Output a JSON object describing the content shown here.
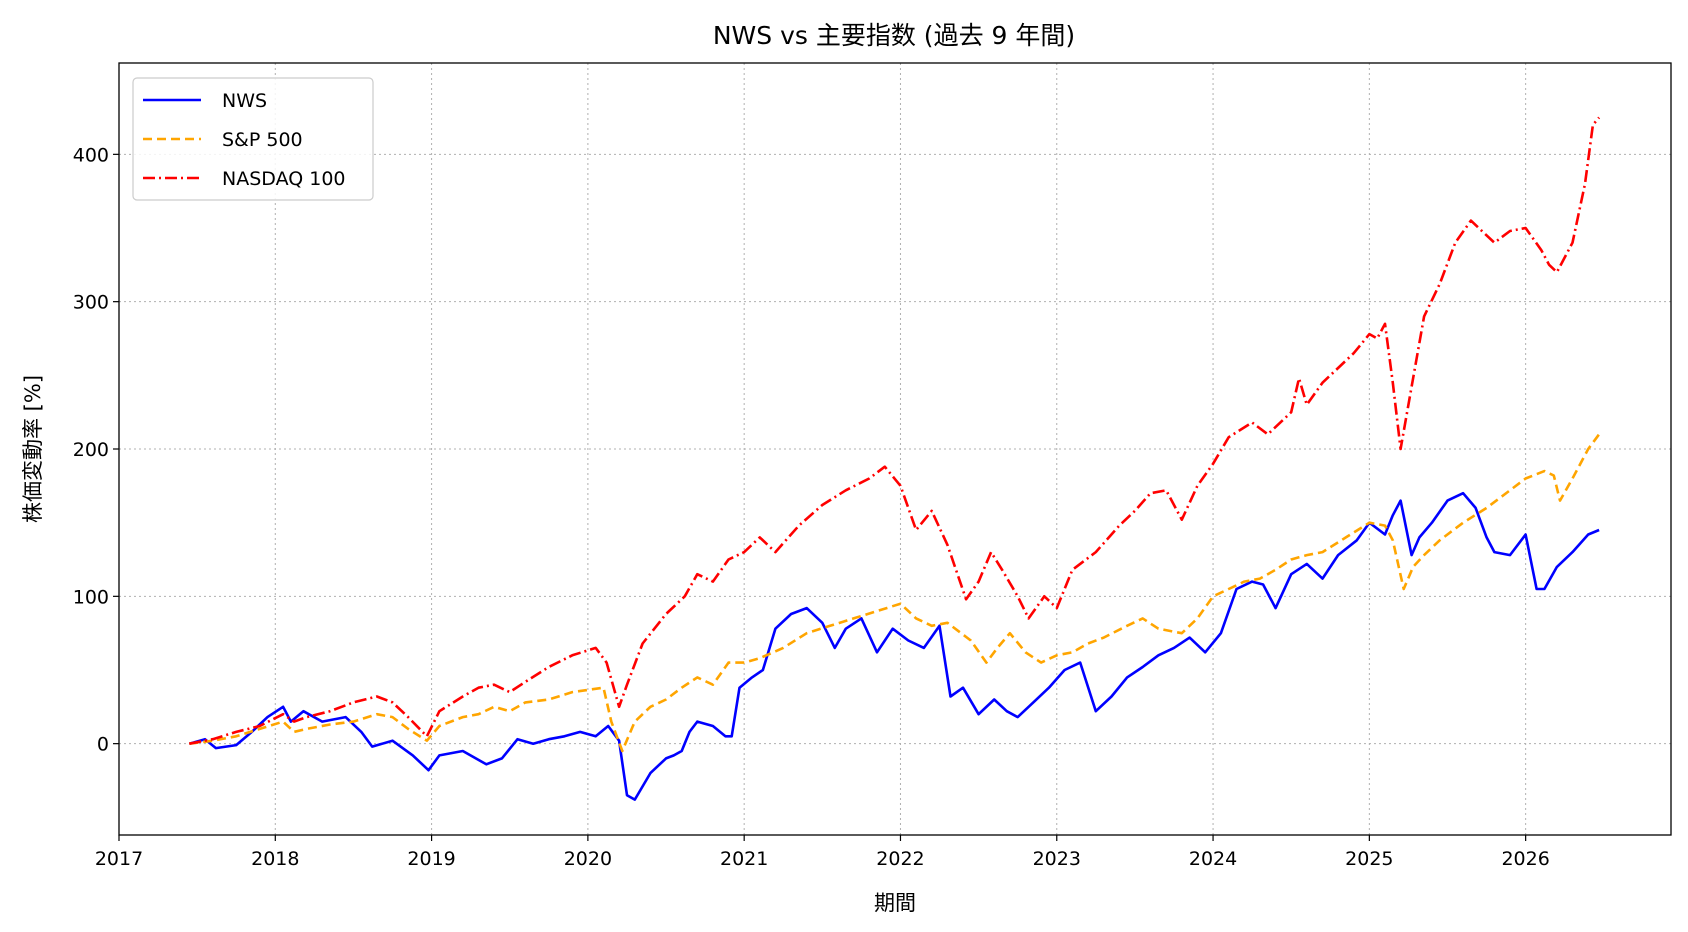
{
  "chart_data": {
    "type": "line",
    "title": "NWS vs 主要指数 (過去 9 年間)",
    "xlabel": "期間",
    "ylabel": "株価変動率 [%]",
    "xlim": [
      2017.0,
      2026.93
    ],
    "ylim": [
      -62,
      462
    ],
    "xticks": [
      2017,
      2018,
      2019,
      2020,
      2021,
      2022,
      2023,
      2024,
      2025,
      2026
    ],
    "yticks": [
      0,
      100,
      200,
      300,
      400
    ],
    "grid": true,
    "legend_position": "top-left",
    "series": [
      {
        "name": "NWS",
        "color": "#0000ff",
        "dash": "solid",
        "x": [
          2017.45,
          2017.55,
          2017.62,
          2017.75,
          2017.85,
          2017.95,
          2018.05,
          2018.1,
          2018.18,
          2018.3,
          2018.45,
          2018.55,
          2018.62,
          2018.75,
          2018.88,
          2018.98,
          2019.05,
          2019.2,
          2019.35,
          2019.45,
          2019.55,
          2019.65,
          2019.75,
          2019.85,
          2019.95,
          2020.05,
          2020.13,
          2020.2,
          2020.25,
          2020.3,
          2020.4,
          2020.5,
          2020.55,
          2020.6,
          2020.65,
          2020.7,
          2020.8,
          2020.88,
          2020.92,
          2020.97,
          2021.05,
          2021.12,
          2021.2,
          2021.3,
          2021.4,
          2021.5,
          2021.58,
          2021.65,
          2021.75,
          2021.85,
          2021.95,
          2022.05,
          2022.15,
          2022.25,
          2022.32,
          2022.4,
          2022.5,
          2022.6,
          2022.68,
          2022.75,
          2022.85,
          2022.95,
          2023.05,
          2023.15,
          2023.25,
          2023.35,
          2023.45,
          2023.55,
          2023.65,
          2023.75,
          2023.85,
          2023.95,
          2024.05,
          2024.15,
          2024.25,
          2024.32,
          2024.4,
          2024.5,
          2024.6,
          2024.7,
          2024.8,
          2024.92,
          2025.0,
          2025.1,
          2025.15,
          2025.2,
          2025.27,
          2025.32,
          2025.4,
          2025.5,
          2025.6,
          2025.68,
          2025.75,
          2025.8,
          2025.9,
          2026.0,
          2026.07,
          2026.12,
          2026.2,
          2026.3,
          2026.4,
          2026.47
        ],
        "y": [
          0,
          3,
          -3,
          -1,
          8,
          18,
          25,
          15,
          22,
          15,
          18,
          8,
          -2,
          2,
          -8,
          -18,
          -8,
          -5,
          -14,
          -10,
          3,
          0,
          3,
          5,
          8,
          5,
          12,
          2,
          -35,
          -38,
          -20,
          -10,
          -8,
          -5,
          8,
          15,
          12,
          5,
          5,
          38,
          45,
          50,
          78,
          88,
          92,
          82,
          65,
          78,
          85,
          62,
          78,
          70,
          65,
          80,
          32,
          38,
          20,
          30,
          22,
          18,
          28,
          38,
          50,
          55,
          22,
          32,
          45,
          52,
          60,
          65,
          72,
          62,
          75,
          105,
          110,
          108,
          92,
          115,
          122,
          112,
          128,
          138,
          150,
          142,
          155,
          165,
          128,
          140,
          150,
          165,
          170,
          160,
          140,
          130,
          128,
          142,
          105,
          105,
          120,
          130,
          142,
          145
        ]
      },
      {
        "name": "S&P 500",
        "color": "#ffa500",
        "dash": "dashed",
        "x": [
          2017.45,
          2017.6,
          2017.75,
          2017.9,
          2018.05,
          2018.12,
          2018.2,
          2018.35,
          2018.5,
          2018.65,
          2018.75,
          2018.85,
          2018.97,
          2019.05,
          2019.2,
          2019.3,
          2019.4,
          2019.5,
          2019.6,
          2019.75,
          2019.9,
          2020.1,
          2020.15,
          2020.22,
          2020.3,
          2020.4,
          2020.5,
          2020.6,
          2020.7,
          2020.8,
          2020.9,
          2021.0,
          2021.1,
          2021.25,
          2021.4,
          2021.55,
          2021.7,
          2021.85,
          2022.0,
          2022.1,
          2022.2,
          2022.3,
          2022.45,
          2022.55,
          2022.62,
          2022.7,
          2022.8,
          2022.9,
          2023.0,
          2023.1,
          2023.2,
          2023.3,
          2023.45,
          2023.55,
          2023.65,
          2023.8,
          2023.9,
          2024.0,
          2024.1,
          2024.2,
          2024.3,
          2024.4,
          2024.5,
          2024.6,
          2024.7,
          2024.85,
          2025.0,
          2025.1,
          2025.15,
          2025.22,
          2025.28,
          2025.35,
          2025.45,
          2025.6,
          2025.75,
          2025.9,
          2026.0,
          2026.12,
          2026.18,
          2026.22,
          2026.3,
          2026.4,
          2026.47
        ],
        "y": [
          0,
          2,
          5,
          10,
          15,
          8,
          10,
          13,
          15,
          20,
          18,
          10,
          2,
          12,
          18,
          20,
          25,
          22,
          28,
          30,
          35,
          38,
          15,
          -5,
          15,
          25,
          30,
          38,
          45,
          40,
          55,
          55,
          58,
          65,
          75,
          80,
          85,
          90,
          95,
          85,
          80,
          82,
          70,
          55,
          65,
          75,
          62,
          55,
          60,
          62,
          68,
          72,
          80,
          85,
          78,
          75,
          85,
          100,
          105,
          110,
          112,
          118,
          125,
          128,
          130,
          140,
          150,
          148,
          138,
          105,
          120,
          128,
          138,
          150,
          160,
          172,
          180,
          185,
          182,
          165,
          180,
          200,
          210
        ]
      },
      {
        "name": "NASDAQ 100",
        "color": "#ff0000",
        "dash": "dashdot",
        "x": [
          2017.45,
          2017.6,
          2017.75,
          2017.9,
          2018.05,
          2018.12,
          2018.2,
          2018.35,
          2018.5,
          2018.65,
          2018.75,
          2018.85,
          2018.97,
          2019.05,
          2019.2,
          2019.3,
          2019.4,
          2019.5,
          2019.6,
          2019.75,
          2019.9,
          2020.05,
          2020.12,
          2020.2,
          2020.25,
          2020.35,
          2020.5,
          2020.62,
          2020.7,
          2020.8,
          2020.9,
          2021.0,
          2021.1,
          2021.2,
          2021.35,
          2021.5,
          2021.65,
          2021.8,
          2021.9,
          2022.0,
          2022.1,
          2022.2,
          2022.3,
          2022.42,
          2022.5,
          2022.58,
          2022.65,
          2022.75,
          2022.82,
          2022.92,
          2023.0,
          2023.1,
          2023.25,
          2023.4,
          2023.5,
          2023.6,
          2023.7,
          2023.8,
          2023.9,
          2024.0,
          2024.1,
          2024.25,
          2024.35,
          2024.5,
          2024.55,
          2024.6,
          2024.7,
          2024.8,
          2024.9,
          2025.0,
          2025.05,
          2025.1,
          2025.15,
          2025.2,
          2025.28,
          2025.35,
          2025.45,
          2025.55,
          2025.65,
          2025.8,
          2025.9,
          2026.0,
          2026.1,
          2026.15,
          2026.2,
          2026.3,
          2026.38,
          2026.43,
          2026.47
        ],
        "y": [
          0,
          3,
          8,
          12,
          20,
          15,
          18,
          22,
          28,
          32,
          28,
          18,
          5,
          22,
          32,
          38,
          40,
          35,
          42,
          52,
          60,
          65,
          55,
          25,
          40,
          68,
          88,
          100,
          115,
          110,
          125,
          130,
          140,
          130,
          148,
          162,
          172,
          180,
          188,
          175,
          145,
          158,
          135,
          98,
          110,
          130,
          118,
          100,
          85,
          100,
          92,
          118,
          130,
          148,
          158,
          170,
          172,
          152,
          175,
          190,
          208,
          218,
          210,
          225,
          248,
          230,
          245,
          255,
          265,
          278,
          275,
          285,
          245,
          200,
          248,
          290,
          312,
          340,
          355,
          340,
          348,
          350,
          335,
          325,
          320,
          340,
          380,
          420,
          425
        ]
      }
    ]
  }
}
